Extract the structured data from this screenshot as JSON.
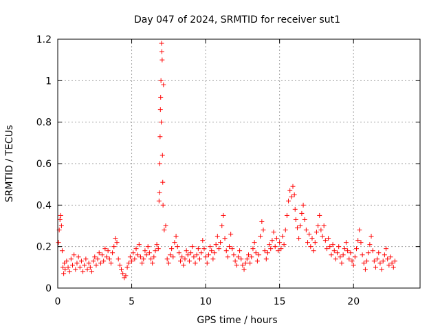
{
  "chart_data": {
    "type": "scatter",
    "title": "Day 047 of 2024, SRMTID for receiver sut1",
    "xlabel": "GPS time / hours",
    "ylabel": "SRMTID / TECUs",
    "xlim": [
      0,
      24.5
    ],
    "ylim": [
      0,
      1.2
    ],
    "xticks": [
      0,
      5,
      10,
      15,
      20
    ],
    "xtick_labels": [
      "0",
      "5",
      "10",
      "15",
      "20"
    ],
    "yticks": [
      0,
      0.2,
      0.4,
      0.6,
      0.8,
      1.0,
      1.2
    ],
    "ytick_labels": [
      "0",
      "0.2",
      "0.4",
      "0.6",
      "0.8",
      "1",
      "1.2"
    ],
    "grid": true,
    "marker": "plus",
    "color": "#ff0000",
    "series": [
      {
        "name": "SRMTID",
        "points": [
          [
            0.05,
            0.22
          ],
          [
            0.1,
            0.28
          ],
          [
            0.15,
            0.33
          ],
          [
            0.2,
            0.35
          ],
          [
            0.25,
            0.3
          ],
          [
            0.3,
            0.18
          ],
          [
            0.35,
            0.1
          ],
          [
            0.4,
            0.07
          ],
          [
            0.45,
            0.12
          ],
          [
            0.5,
            0.09
          ],
          [
            0.6,
            0.13
          ],
          [
            0.7,
            0.1
          ],
          [
            0.8,
            0.08
          ],
          [
            0.9,
            0.14
          ],
          [
            1.0,
            0.11
          ],
          [
            1.1,
            0.16
          ],
          [
            1.2,
            0.09
          ],
          [
            1.3,
            0.12
          ],
          [
            1.4,
            0.15
          ],
          [
            1.5,
            0.1
          ],
          [
            1.6,
            0.13
          ],
          [
            1.7,
            0.08
          ],
          [
            1.8,
            0.11
          ],
          [
            1.9,
            0.14
          ],
          [
            2.0,
            0.09
          ],
          [
            2.1,
            0.12
          ],
          [
            2.2,
            0.1
          ],
          [
            2.3,
            0.08
          ],
          [
            2.4,
            0.13
          ],
          [
            2.5,
            0.15
          ],
          [
            2.6,
            0.11
          ],
          [
            2.7,
            0.14
          ],
          [
            2.8,
            0.17
          ],
          [
            2.9,
            0.12
          ],
          [
            3.0,
            0.16
          ],
          [
            3.1,
            0.13
          ],
          [
            3.2,
            0.19
          ],
          [
            3.3,
            0.15
          ],
          [
            3.4,
            0.18
          ],
          [
            3.5,
            0.14
          ],
          [
            3.6,
            0.12
          ],
          [
            3.7,
            0.17
          ],
          [
            3.8,
            0.2
          ],
          [
            3.9,
            0.24
          ],
          [
            4.0,
            0.22
          ],
          [
            4.1,
            0.14
          ],
          [
            4.2,
            0.11
          ],
          [
            4.3,
            0.09
          ],
          [
            4.4,
            0.07
          ],
          [
            4.5,
            0.05
          ],
          [
            4.6,
            0.06
          ],
          [
            4.7,
            0.1
          ],
          [
            4.8,
            0.12
          ],
          [
            4.9,
            0.15
          ],
          [
            5.0,
            0.13
          ],
          [
            5.1,
            0.17
          ],
          [
            5.2,
            0.14
          ],
          [
            5.3,
            0.19
          ],
          [
            5.4,
            0.16
          ],
          [
            5.5,
            0.21
          ],
          [
            5.6,
            0.15
          ],
          [
            5.7,
            0.12
          ],
          [
            5.8,
            0.14
          ],
          [
            5.9,
            0.18
          ],
          [
            6.0,
            0.16
          ],
          [
            6.1,
            0.2
          ],
          [
            6.2,
            0.17
          ],
          [
            6.3,
            0.14
          ],
          [
            6.4,
            0.12
          ],
          [
            6.5,
            0.15
          ],
          [
            6.6,
            0.18
          ],
          [
            6.7,
            0.21
          ],
          [
            6.8,
            0.19
          ],
          [
            6.85,
            0.42
          ],
          [
            6.88,
            0.46
          ],
          [
            6.9,
            0.6
          ],
          [
            6.92,
            0.73
          ],
          [
            6.94,
            0.86
          ],
          [
            6.96,
            0.92
          ],
          [
            6.98,
            1.0
          ],
          [
            7.0,
            0.8
          ],
          [
            7.02,
            1.18
          ],
          [
            7.04,
            1.14
          ],
          [
            7.06,
            1.1
          ],
          [
            7.08,
            0.64
          ],
          [
            7.1,
            0.51
          ],
          [
            7.12,
            0.4
          ],
          [
            7.15,
            0.98
          ],
          [
            7.2,
            0.28
          ],
          [
            7.3,
            0.3
          ],
          [
            7.4,
            0.14
          ],
          [
            7.5,
            0.12
          ],
          [
            7.6,
            0.16
          ],
          [
            7.7,
            0.19
          ],
          [
            7.8,
            0.15
          ],
          [
            7.9,
            0.22
          ],
          [
            8.0,
            0.25
          ],
          [
            8.1,
            0.2
          ],
          [
            8.2,
            0.17
          ],
          [
            8.3,
            0.13
          ],
          [
            8.4,
            0.15
          ],
          [
            8.5,
            0.11
          ],
          [
            8.6,
            0.14
          ],
          [
            8.7,
            0.18
          ],
          [
            8.8,
            0.16
          ],
          [
            8.9,
            0.13
          ],
          [
            9.0,
            0.17
          ],
          [
            9.1,
            0.2
          ],
          [
            9.2,
            0.15
          ],
          [
            9.3,
            0.12
          ],
          [
            9.4,
            0.16
          ],
          [
            9.5,
            0.19
          ],
          [
            9.6,
            0.14
          ],
          [
            9.7,
            0.17
          ],
          [
            9.8,
            0.23
          ],
          [
            9.9,
            0.19
          ],
          [
            10.0,
            0.15
          ],
          [
            10.1,
            0.12
          ],
          [
            10.2,
            0.16
          ],
          [
            10.3,
            0.2
          ],
          [
            10.4,
            0.18
          ],
          [
            10.5,
            0.14
          ],
          [
            10.6,
            0.17
          ],
          [
            10.7,
            0.21
          ],
          [
            10.8,
            0.25
          ],
          [
            10.9,
            0.19
          ],
          [
            11.0,
            0.22
          ],
          [
            11.1,
            0.3
          ],
          [
            11.2,
            0.35
          ],
          [
            11.3,
            0.24
          ],
          [
            11.4,
            0.18
          ],
          [
            11.5,
            0.15
          ],
          [
            11.6,
            0.2
          ],
          [
            11.7,
            0.26
          ],
          [
            11.8,
            0.19
          ],
          [
            11.9,
            0.16
          ],
          [
            12.0,
            0.13
          ],
          [
            12.1,
            0.11
          ],
          [
            12.2,
            0.15
          ],
          [
            12.3,
            0.18
          ],
          [
            12.4,
            0.14
          ],
          [
            12.5,
            0.11
          ],
          [
            12.6,
            0.09
          ],
          [
            12.7,
            0.12
          ],
          [
            12.8,
            0.14
          ],
          [
            12.9,
            0.16
          ],
          [
            13.0,
            0.12
          ],
          [
            13.1,
            0.15
          ],
          [
            13.2,
            0.19
          ],
          [
            13.3,
            0.22
          ],
          [
            13.4,
            0.17
          ],
          [
            13.5,
            0.13
          ],
          [
            13.6,
            0.16
          ],
          [
            13.7,
            0.25
          ],
          [
            13.8,
            0.32
          ],
          [
            13.9,
            0.28
          ],
          [
            14.0,
            0.18
          ],
          [
            14.1,
            0.14
          ],
          [
            14.2,
            0.17
          ],
          [
            14.3,
            0.21
          ],
          [
            14.4,
            0.19
          ],
          [
            14.5,
            0.23
          ],
          [
            14.6,
            0.27
          ],
          [
            14.7,
            0.2
          ],
          [
            14.8,
            0.24
          ],
          [
            14.9,
            0.18
          ],
          [
            15.0,
            0.22
          ],
          [
            15.1,
            0.19
          ],
          [
            15.2,
            0.25
          ],
          [
            15.3,
            0.21
          ],
          [
            15.4,
            0.28
          ],
          [
            15.5,
            0.35
          ],
          [
            15.6,
            0.42
          ],
          [
            15.7,
            0.47
          ],
          [
            15.8,
            0.44
          ],
          [
            15.9,
            0.49
          ],
          [
            16.0,
            0.45
          ],
          [
            16.05,
            0.38
          ],
          [
            16.1,
            0.33
          ],
          [
            16.2,
            0.29
          ],
          [
            16.3,
            0.24
          ],
          [
            16.4,
            0.3
          ],
          [
            16.5,
            0.36
          ],
          [
            16.6,
            0.4
          ],
          [
            16.7,
            0.33
          ],
          [
            16.8,
            0.28
          ],
          [
            16.9,
            0.22
          ],
          [
            17.0,
            0.26
          ],
          [
            17.1,
            0.2
          ],
          [
            17.2,
            0.24
          ],
          [
            17.3,
            0.18
          ],
          [
            17.4,
            0.22
          ],
          [
            17.5,
            0.27
          ],
          [
            17.6,
            0.3
          ],
          [
            17.7,
            0.35
          ],
          [
            17.8,
            0.28
          ],
          [
            17.9,
            0.25
          ],
          [
            18.0,
            0.3
          ],
          [
            18.1,
            0.23
          ],
          [
            18.2,
            0.19
          ],
          [
            18.3,
            0.24
          ],
          [
            18.4,
            0.2
          ],
          [
            18.5,
            0.16
          ],
          [
            18.6,
            0.21
          ],
          [
            18.7,
            0.18
          ],
          [
            18.8,
            0.14
          ],
          [
            18.9,
            0.17
          ],
          [
            19.0,
            0.2
          ],
          [
            19.1,
            0.15
          ],
          [
            19.2,
            0.12
          ],
          [
            19.3,
            0.16
          ],
          [
            19.4,
            0.19
          ],
          [
            19.5,
            0.22
          ],
          [
            19.6,
            0.18
          ],
          [
            19.7,
            0.14
          ],
          [
            19.8,
            0.17
          ],
          [
            19.9,
            0.13
          ],
          [
            20.0,
            0.11
          ],
          [
            20.1,
            0.15
          ],
          [
            20.2,
            0.19
          ],
          [
            20.3,
            0.23
          ],
          [
            20.4,
            0.28
          ],
          [
            20.5,
            0.22
          ],
          [
            20.6,
            0.16
          ],
          [
            20.7,
            0.12
          ],
          [
            20.8,
            0.09
          ],
          [
            20.9,
            0.13
          ],
          [
            21.0,
            0.17
          ],
          [
            21.1,
            0.21
          ],
          [
            21.2,
            0.25
          ],
          [
            21.3,
            0.18
          ],
          [
            21.4,
            0.13
          ],
          [
            21.5,
            0.1
          ],
          [
            21.6,
            0.14
          ],
          [
            21.7,
            0.17
          ],
          [
            21.8,
            0.12
          ],
          [
            21.9,
            0.09
          ],
          [
            22.0,
            0.13
          ],
          [
            22.1,
            0.16
          ],
          [
            22.2,
            0.19
          ],
          [
            22.3,
            0.14
          ],
          [
            22.4,
            0.11
          ],
          [
            22.5,
            0.15
          ],
          [
            22.6,
            0.12
          ],
          [
            22.7,
            0.1
          ],
          [
            22.8,
            0.13
          ]
        ]
      }
    ]
  }
}
